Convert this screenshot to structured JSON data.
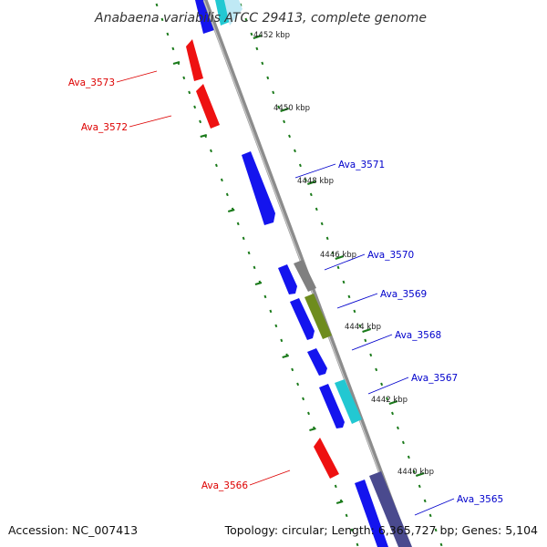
{
  "title": "Anabaena variabilis ATCC 29413, complete genome",
  "footer": {
    "accession": "Accession: NC_007413",
    "summary": "Topology: circular; Length: 6,365,727 bp; Genes: 5,104"
  },
  "colors": {
    "backbone": "#8c8c8c",
    "ticks": "#1a7a1a",
    "forward_label": "#0000cc",
    "reverse_label": "#dd0000",
    "blue": "#1414ee",
    "red": "#ee1111",
    "gray": "#808080",
    "olive": "#6e8c1e",
    "cyan": "#22c8d2",
    "slate": "#4a4a8e",
    "lightcyan": "#bfe9f5"
  },
  "scale_labels": [
    "4452 kbp",
    "4450 kbp",
    "4448 kbp",
    "4446 kbp",
    "4444 kbp",
    "4442 kbp",
    "4440 kbp"
  ],
  "genes": [
    {
      "label": "Ava_3573",
      "strand": "reverse",
      "color": "red"
    },
    {
      "label": "Ava_3572",
      "strand": "reverse",
      "color": "red"
    },
    {
      "label": "Ava_3571",
      "strand": "forward",
      "color": "blue"
    },
    {
      "label": "Ava_3570",
      "strand": "forward",
      "color": "gray"
    },
    {
      "label": "Ava_3569",
      "strand": "forward",
      "color": "olive"
    },
    {
      "label": "Ava_3568",
      "strand": "forward",
      "color": "blue"
    },
    {
      "label": "Ava_3567",
      "strand": "forward",
      "color": "cyan"
    },
    {
      "label": "Ava_3566",
      "strand": "reverse",
      "color": "red"
    },
    {
      "label": "Ava_3565",
      "strand": "forward",
      "color": "slate"
    }
  ]
}
